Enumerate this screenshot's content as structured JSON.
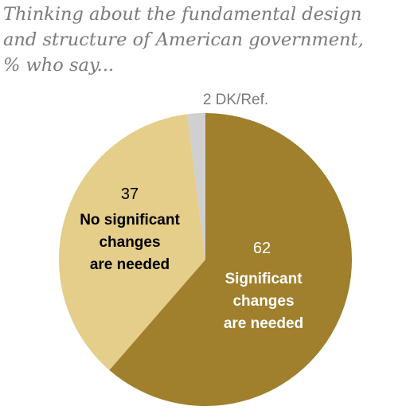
{
  "title": "Thinking about the fundamental design\nand structure of American government,\n% who say...",
  "chart_data": {
    "type": "pie",
    "title": "Thinking about the fundamental design and structure of American government, % who say...",
    "slices": [
      {
        "label": "Significant changes are needed",
        "label_lines": [
          "Significant",
          "changes",
          "are needed"
        ],
        "value": 62,
        "value_text": "62",
        "color": "#a07f2d",
        "text_color": "#ffffff"
      },
      {
        "label": "No significant changes are needed",
        "label_lines": [
          "No significant",
          "changes",
          "are needed"
        ],
        "value": 37,
        "value_text": "37",
        "color": "#e5cd8a",
        "text_color": "#000000"
      },
      {
        "label": "DK/Ref.",
        "label_lines": [],
        "value": 2,
        "value_text": "2 DK/Ref.",
        "color": "#d0d0d0",
        "text_color": "#7a7a7a"
      }
    ]
  }
}
